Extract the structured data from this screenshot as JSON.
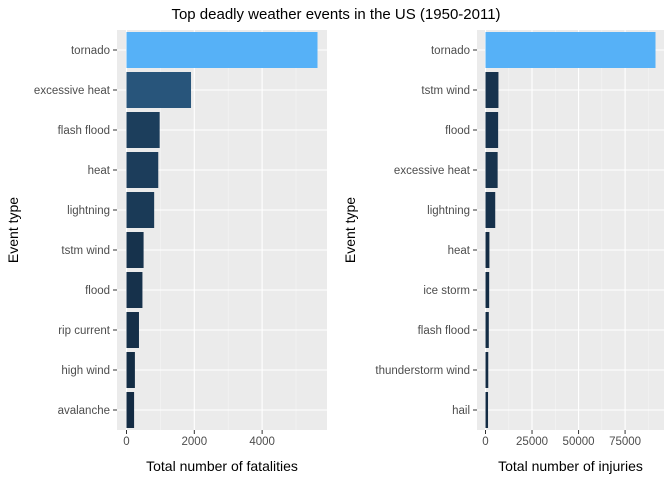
{
  "title": "Top deadly weather events in the US (1950-2011)",
  "theme": {
    "panel_bg": "#EBEBEB",
    "grid_major": "#FFFFFF",
    "grid_minor": "#F5F5F5",
    "tick_text": "#4D4D4D",
    "axis_title": "#000000",
    "bar_low": "#132B43",
    "bar_high": "#56B1F7"
  },
  "chart_data": [
    {
      "type": "bar",
      "orientation": "horizontal",
      "categories": [
        "tornado",
        "excessive heat",
        "flash flood",
        "heat",
        "lightning",
        "tstm wind",
        "flood",
        "rip current",
        "high wind",
        "avalanche"
      ],
      "values": [
        5633,
        1903,
        978,
        937,
        816,
        504,
        470,
        368,
        248,
        224
      ],
      "xlabel": "Total number of fatalities",
      "ylabel": "Event type",
      "xticks": [
        0,
        2000,
        4000
      ],
      "xlim": [
        -280,
        5913
      ],
      "fill": "gradient by value, dark navy to light blue"
    },
    {
      "type": "bar",
      "orientation": "horizontal",
      "categories": [
        "tornado",
        "tstm wind",
        "flood",
        "excessive heat",
        "lightning",
        "heat",
        "ice storm",
        "flash flood",
        "thunderstorm wind",
        "hail"
      ],
      "values": [
        91346,
        6957,
        6789,
        6525,
        5230,
        2100,
        1975,
        1777,
        1488,
        1361
      ],
      "xlabel": "Total number of injuries",
      "ylabel": "Event type",
      "xticks": [
        0,
        25000,
        50000,
        75000
      ],
      "xlim": [
        -4567,
        95913
      ],
      "fill": "gradient by value, dark navy to light blue"
    }
  ]
}
